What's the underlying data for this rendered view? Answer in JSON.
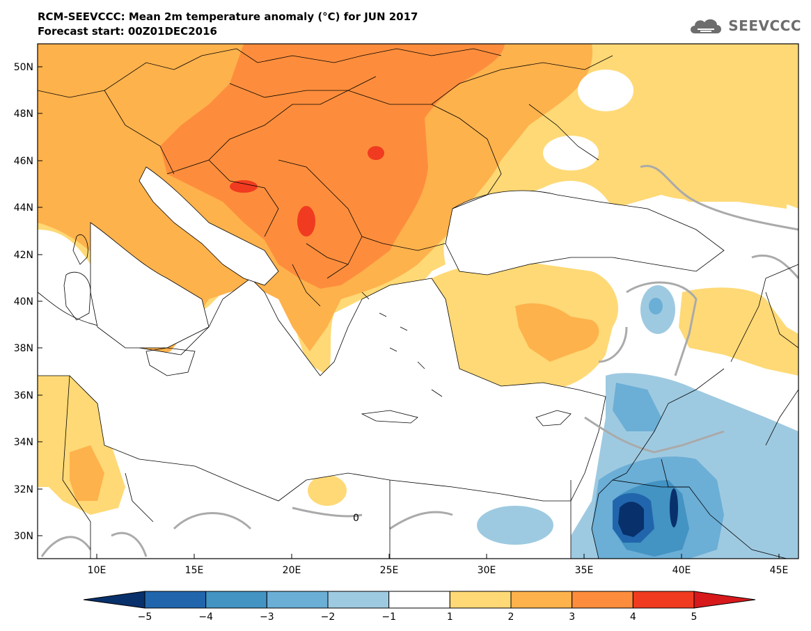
{
  "header": {
    "title": "RCM-SEEVCCC: Mean 2m temperature anomaly (°C) for JUN 2017",
    "subtitle": "Forecast start: 00Z01DEC2016"
  },
  "logo": {
    "icon": "cloud-icon",
    "text": "SEEVCCC"
  },
  "map": {
    "lon_range": [
      7,
      46
    ],
    "lat_range": [
      29,
      51
    ],
    "lon_ticks": [
      "10E",
      "15E",
      "20E",
      "25E",
      "30E",
      "35E",
      "40E",
      "45E"
    ],
    "lat_ticks": [
      "50N",
      "48N",
      "46N",
      "44N",
      "42N",
      "40N",
      "38N",
      "36N",
      "34N",
      "32N",
      "30N"
    ],
    "zero_contour_label": "0"
  },
  "colorbar": {
    "labels": [
      "−5",
      "−4",
      "−3",
      "−2",
      "−1",
      "1",
      "2",
      "3",
      "4",
      "5"
    ],
    "colors": [
      "#08306b",
      "#2166ac",
      "#4393c3",
      "#6baed6",
      "#9ecae1",
      "#ffffff",
      "#fed976",
      "#feb24c",
      "#fd8d3c",
      "#f03b20",
      "#d7191c"
    ]
  }
}
